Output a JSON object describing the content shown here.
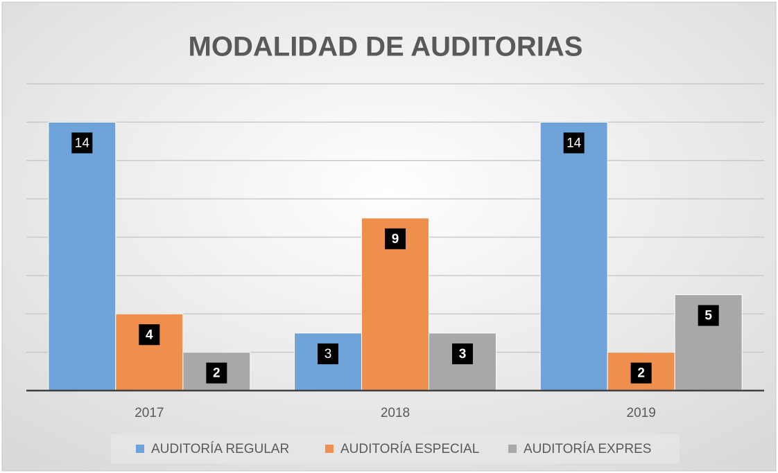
{
  "chart_data": {
    "type": "bar",
    "title": "MODALIDAD DE AUDITORIAS",
    "categories": [
      "2017",
      "2018",
      "2019"
    ],
    "series": [
      {
        "name": "AUDITORÍA REGULAR",
        "color": "#6fa4da",
        "values": [
          14,
          3,
          14
        ]
      },
      {
        "name": "AUDITORÍA ESPECIAL",
        "color": "#ee8f4d",
        "values": [
          4,
          9,
          2
        ]
      },
      {
        "name": "AUDITORÍA EXPRES",
        "color": "#a8a8a8",
        "values": [
          2,
          3,
          5
        ]
      }
    ],
    "ylim": [
      0,
      16
    ],
    "yticks": [
      0,
      2,
      4,
      6,
      8,
      10,
      12,
      14,
      16
    ],
    "grid": true,
    "legend": "bottom"
  }
}
